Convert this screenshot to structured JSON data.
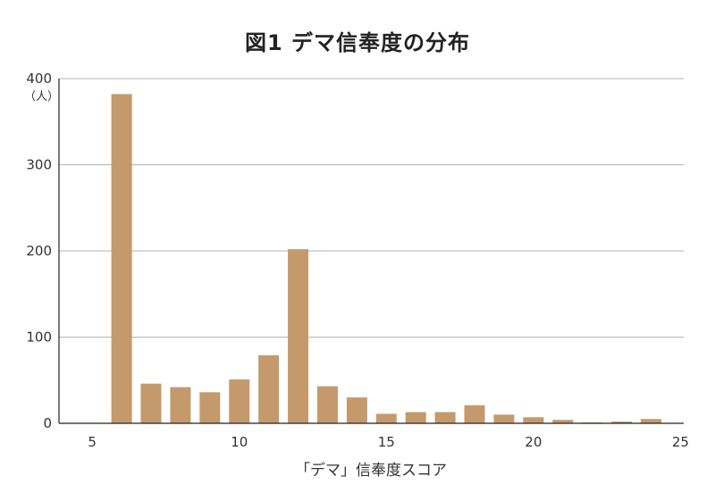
{
  "title": "図1 デマ信奉度の分布",
  "chart_data": {
    "type": "bar",
    "title": "図1 デマ信奉度の分布",
    "xlabel": "「デマ」信奉度スコア",
    "ylabel_unit": "（人）",
    "xlim": [
      5,
      25
    ],
    "ylim": [
      0,
      400
    ],
    "xticks": [
      5,
      10,
      15,
      20,
      25
    ],
    "yticks": [
      0,
      100,
      200,
      300,
      400
    ],
    "grid": true,
    "bar_color": "#c49a6c",
    "x": [
      6,
      7,
      8,
      9,
      10,
      11,
      12,
      13,
      14,
      15,
      16,
      17,
      18,
      19,
      20,
      21,
      22,
      23,
      24
    ],
    "values": [
      382,
      46,
      42,
      36,
      51,
      79,
      202,
      43,
      30,
      11,
      13,
      13,
      21,
      10,
      7,
      4,
      1,
      2,
      5
    ]
  }
}
